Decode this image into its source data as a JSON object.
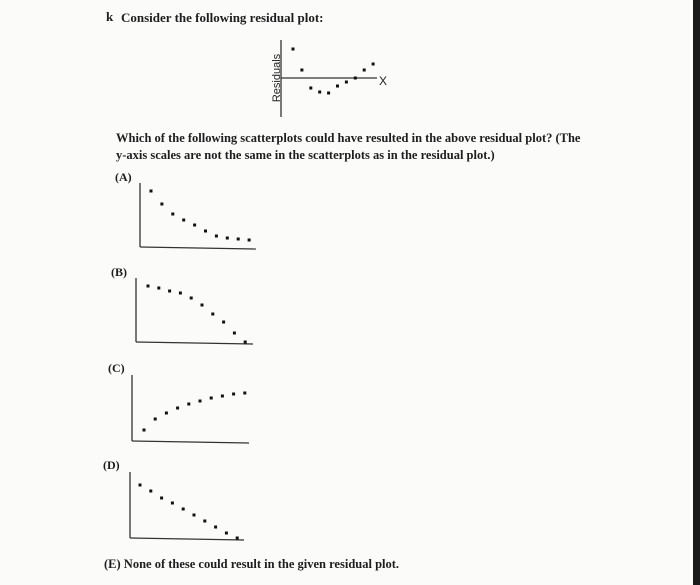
{
  "question": {
    "number_mark": "k",
    "prompt": "Consider the following residual plot:",
    "text_line1": "Which of the following scatterplots could have resulted in the above residual plot? (The",
    "text_line2": "y-axis scales are not the same in the scatterplots as in the residual plot.)",
    "option_e": "(E)  None of these could result in the given residual plot."
  },
  "chart_data": [
    {
      "id": "residual",
      "type": "scatter",
      "ylabel": "Residuals",
      "xlabel": "X",
      "reference_line": 0,
      "x": [
        1,
        2,
        3,
        4,
        5,
        6,
        7,
        8,
        9,
        10
      ],
      "y": [
        2.9,
        0.8,
        -1.0,
        -1.4,
        -1.5,
        -0.8,
        -0.4,
        0,
        0.8,
        1.4
      ]
    },
    {
      "id": "A",
      "type": "scatter",
      "label": "(A)",
      "x": [
        1,
        2,
        3,
        4,
        5,
        6,
        7,
        8,
        9,
        10
      ],
      "y": [
        11.2,
        8.6,
        6.6,
        5.4,
        4.4,
        3.2,
        2.2,
        1.8,
        1.6,
        1.4
      ]
    },
    {
      "id": "B",
      "type": "scatter",
      "label": "(B)",
      "x": [
        1,
        2,
        3,
        4,
        5,
        6,
        7,
        8,
        9,
        10
      ],
      "y": [
        11.2,
        10.8,
        10.2,
        9.8,
        8.8,
        7.4,
        5.6,
        4.0,
        1.8,
        0
      ]
    },
    {
      "id": "C",
      "type": "scatter",
      "label": "(C)",
      "x": [
        1,
        2,
        3,
        4,
        5,
        6,
        7,
        8,
        9,
        10
      ],
      "y": [
        2.2,
        4.4,
        5.6,
        6.6,
        7.4,
        8.0,
        8.6,
        9.0,
        9.4,
        9.6
      ]
    },
    {
      "id": "D",
      "type": "scatter",
      "label": "(D)",
      "x": [
        1,
        2,
        3,
        4,
        5,
        6,
        7,
        8,
        9,
        10
      ],
      "y": [
        10.6,
        9.4,
        8.0,
        7.0,
        5.8,
        4.6,
        3.4,
        2.2,
        1.0,
        0
      ]
    }
  ]
}
